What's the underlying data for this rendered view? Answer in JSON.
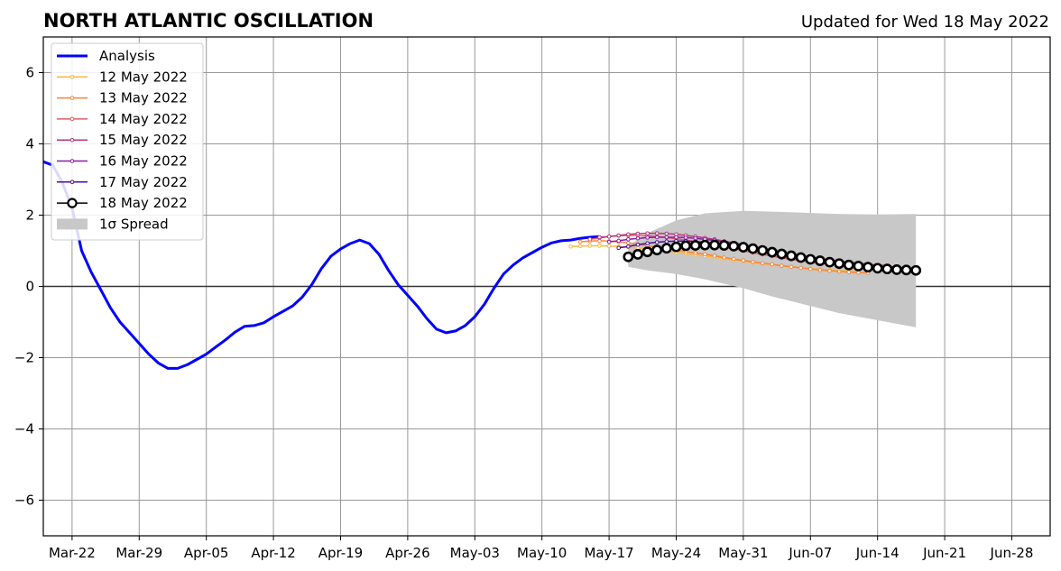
{
  "chart_data": {
    "type": "line",
    "title": "NORTH ATLANTIC OSCILLATION",
    "subtitle": "Updated for Wed 18 May 2022",
    "xlim": [
      "2022-03-19",
      "2022-07-02"
    ],
    "ylim": [
      -7,
      7
    ],
    "grid": true,
    "legend_position": "top-left",
    "x_ticks": [
      {
        "date": "2022-03-22",
        "label": "Mar-22"
      },
      {
        "date": "2022-03-29",
        "label": "Mar-29"
      },
      {
        "date": "2022-04-05",
        "label": "Apr-05"
      },
      {
        "date": "2022-04-12",
        "label": "Apr-12"
      },
      {
        "date": "2022-04-19",
        "label": "Apr-19"
      },
      {
        "date": "2022-04-26",
        "label": "Apr-26"
      },
      {
        "date": "2022-05-03",
        "label": "May-03"
      },
      {
        "date": "2022-05-10",
        "label": "May-10"
      },
      {
        "date": "2022-05-17",
        "label": "May-17"
      },
      {
        "date": "2022-05-24",
        "label": "May-24"
      },
      {
        "date": "2022-05-31",
        "label": "May-31"
      },
      {
        "date": "2022-06-07",
        "label": "Jun-07"
      },
      {
        "date": "2022-06-14",
        "label": "Jun-14"
      },
      {
        "date": "2022-06-21",
        "label": "Jun-21"
      },
      {
        "date": "2022-06-28",
        "label": "Jun-28"
      }
    ],
    "y_ticks": [
      {
        "value": 6,
        "label": "6"
      },
      {
        "value": 4,
        "label": "4"
      },
      {
        "value": 2,
        "label": "2"
      },
      {
        "value": 0,
        "label": "0"
      },
      {
        "value": -2,
        "label": "−2"
      },
      {
        "value": -4,
        "label": "−4"
      },
      {
        "value": -6,
        "label": "−6"
      }
    ],
    "series": [
      {
        "name": "Analysis",
        "color": "#0000ff",
        "style": "analysis",
        "x": [
          "2022-03-19",
          "2022-03-20",
          "2022-03-21",
          "2022-03-22",
          "2022-03-23",
          "2022-03-24",
          "2022-03-25",
          "2022-03-26",
          "2022-03-27",
          "2022-03-28",
          "2022-03-29",
          "2022-03-30",
          "2022-03-31",
          "2022-04-01",
          "2022-04-02",
          "2022-04-03",
          "2022-04-04",
          "2022-04-05",
          "2022-04-06",
          "2022-04-07",
          "2022-04-08",
          "2022-04-09",
          "2022-04-10",
          "2022-04-11",
          "2022-04-12",
          "2022-04-13",
          "2022-04-14",
          "2022-04-15",
          "2022-04-16",
          "2022-04-17",
          "2022-04-18",
          "2022-04-19",
          "2022-04-20",
          "2022-04-21",
          "2022-04-22",
          "2022-04-23",
          "2022-04-24",
          "2022-04-25",
          "2022-04-26",
          "2022-04-27",
          "2022-04-28",
          "2022-04-29",
          "2022-04-30",
          "2022-05-01",
          "2022-05-02",
          "2022-05-03",
          "2022-05-04",
          "2022-05-05",
          "2022-05-06",
          "2022-05-07",
          "2022-05-08",
          "2022-05-09",
          "2022-05-10",
          "2022-05-11",
          "2022-05-12",
          "2022-05-13",
          "2022-05-14",
          "2022-05-15",
          "2022-05-16"
        ],
        "y": [
          3.5,
          3.4,
          2.9,
          2.2,
          1.0,
          0.4,
          -0.1,
          -0.6,
          -1.0,
          -1.3,
          -1.6,
          -1.9,
          -2.15,
          -2.3,
          -2.3,
          -2.2,
          -2.05,
          -1.9,
          -1.7,
          -1.5,
          -1.28,
          -1.12,
          -1.1,
          -1.02,
          -0.85,
          -0.7,
          -0.55,
          -0.3,
          0.05,
          0.5,
          0.85,
          1.05,
          1.2,
          1.3,
          1.2,
          0.9,
          0.45,
          0.05,
          -0.25,
          -0.55,
          -0.9,
          -1.2,
          -1.3,
          -1.25,
          -1.1,
          -0.85,
          -0.5,
          -0.05,
          0.35,
          0.6,
          0.8,
          0.95,
          1.1,
          1.22,
          1.28,
          1.3,
          1.35,
          1.38,
          1.4
        ]
      },
      {
        "name": "12 May 2022",
        "color": "#fcb73f",
        "style": "marker",
        "x": [
          "2022-05-13",
          "2022-05-14",
          "2022-05-15",
          "2022-05-16",
          "2022-05-17",
          "2022-05-18",
          "2022-05-19",
          "2022-05-20",
          "2022-05-21",
          "2022-05-22",
          "2022-05-23",
          "2022-05-24",
          "2022-05-25",
          "2022-05-26",
          "2022-05-27",
          "2022-05-28",
          "2022-05-29",
          "2022-05-30",
          "2022-05-31",
          "2022-06-01",
          "2022-06-02",
          "2022-06-03",
          "2022-06-04",
          "2022-06-05",
          "2022-06-06",
          "2022-06-07",
          "2022-06-08",
          "2022-06-09",
          "2022-06-10",
          "2022-06-11",
          "2022-06-12"
        ],
        "y": [
          1.12,
          1.13,
          1.14,
          1.14,
          1.13,
          1.12,
          1.1,
          1.08,
          1.05,
          1.02,
          0.99,
          0.96,
          0.93,
          0.89,
          0.85,
          0.82,
          0.78,
          0.74,
          0.71,
          0.67,
          0.64,
          0.61,
          0.58,
          0.55,
          0.53,
          0.5,
          0.48,
          0.46,
          0.44,
          0.43,
          0.42
        ]
      },
      {
        "name": "13 May 2022",
        "color": "#f7853b",
        "style": "marker",
        "x": [
          "2022-05-14",
          "2022-05-15",
          "2022-05-16",
          "2022-05-17",
          "2022-05-18",
          "2022-05-19",
          "2022-05-20",
          "2022-05-21",
          "2022-05-22",
          "2022-05-23",
          "2022-05-24",
          "2022-05-25",
          "2022-05-26",
          "2022-05-27",
          "2022-05-28",
          "2022-05-29",
          "2022-05-30",
          "2022-05-31",
          "2022-06-01",
          "2022-06-02",
          "2022-06-03",
          "2022-06-04",
          "2022-06-05",
          "2022-06-06",
          "2022-06-07",
          "2022-06-08",
          "2022-06-09",
          "2022-06-10",
          "2022-06-11",
          "2022-06-12",
          "2022-06-13"
        ],
        "y": [
          1.25,
          1.27,
          1.28,
          1.27,
          1.25,
          1.22,
          1.18,
          1.14,
          1.1,
          1.06,
          1.02,
          0.98,
          0.94,
          0.9,
          0.86,
          0.81,
          0.77,
          0.73,
          0.69,
          0.65,
          0.62,
          0.58,
          0.55,
          0.52,
          0.49,
          0.46,
          0.44,
          0.42,
          0.4,
          0.39,
          0.38
        ]
      },
      {
        "name": "14 May 2022",
        "color": "#e15c63",
        "style": "marker",
        "x": [
          "2022-05-15",
          "2022-05-16",
          "2022-05-17",
          "2022-05-18",
          "2022-05-19",
          "2022-05-20",
          "2022-05-21",
          "2022-05-22",
          "2022-05-23",
          "2022-05-24",
          "2022-05-25",
          "2022-05-26",
          "2022-05-27",
          "2022-05-28",
          "2022-05-29",
          "2022-05-30",
          "2022-05-31",
          "2022-06-01",
          "2022-06-02",
          "2022-06-03",
          "2022-06-04",
          "2022-06-05",
          "2022-06-06",
          "2022-06-07",
          "2022-06-08",
          "2022-06-09",
          "2022-06-10",
          "2022-06-11",
          "2022-06-12",
          "2022-06-13",
          "2022-06-14"
        ],
        "y": [
          1.32,
          1.36,
          1.4,
          1.42,
          1.43,
          1.43,
          1.42,
          1.4,
          1.37,
          1.34,
          1.3,
          1.26,
          1.21,
          1.16,
          1.11,
          1.06,
          1.0,
          0.95,
          0.9,
          0.85,
          0.8,
          0.76,
          0.72,
          0.68,
          0.65,
          0.62,
          0.6,
          0.58,
          0.56,
          0.55,
          0.54
        ]
      },
      {
        "name": "15 May 2022",
        "color": "#b5367a",
        "style": "marker",
        "x": [
          "2022-05-16",
          "2022-05-17",
          "2022-05-18",
          "2022-05-19",
          "2022-05-20",
          "2022-05-21",
          "2022-05-22",
          "2022-05-23",
          "2022-05-24",
          "2022-05-25",
          "2022-05-26",
          "2022-05-27",
          "2022-05-28",
          "2022-05-29",
          "2022-05-30",
          "2022-05-31",
          "2022-06-01",
          "2022-06-02",
          "2022-06-03",
          "2022-06-04",
          "2022-06-05",
          "2022-06-06",
          "2022-06-07",
          "2022-06-08",
          "2022-06-09",
          "2022-06-10",
          "2022-06-11",
          "2022-06-12",
          "2022-06-13",
          "2022-06-14",
          "2022-06-15"
        ],
        "y": [
          1.38,
          1.4,
          1.43,
          1.46,
          1.48,
          1.49,
          1.49,
          1.48,
          1.46,
          1.43,
          1.4,
          1.36,
          1.32,
          1.27,
          1.22,
          1.17,
          1.12,
          1.06,
          1.01,
          0.96,
          0.91,
          0.86,
          0.82,
          0.78,
          0.74,
          0.71,
          0.68,
          0.65,
          0.62,
          0.6,
          0.58
        ]
      },
      {
        "name": "16 May 2022",
        "color": "#8a1ca8",
        "style": "marker",
        "x": [
          "2022-05-17",
          "2022-05-18",
          "2022-05-19",
          "2022-05-20",
          "2022-05-21",
          "2022-05-22",
          "2022-05-23",
          "2022-05-24",
          "2022-05-25",
          "2022-05-26",
          "2022-05-27",
          "2022-05-28",
          "2022-05-29",
          "2022-05-30",
          "2022-05-31",
          "2022-06-01",
          "2022-06-02",
          "2022-06-03",
          "2022-06-04",
          "2022-06-05",
          "2022-06-06",
          "2022-06-07",
          "2022-06-08",
          "2022-06-09",
          "2022-06-10",
          "2022-06-11",
          "2022-06-12",
          "2022-06-13",
          "2022-06-14",
          "2022-06-15",
          "2022-06-16"
        ],
        "y": [
          1.25,
          1.28,
          1.32,
          1.35,
          1.37,
          1.38,
          1.38,
          1.38,
          1.37,
          1.35,
          1.32,
          1.29,
          1.25,
          1.21,
          1.17,
          1.12,
          1.07,
          1.02,
          0.97,
          0.92,
          0.87,
          0.83,
          0.78,
          0.74,
          0.7,
          0.67,
          0.64,
          0.61,
          0.58,
          0.56,
          0.54
        ]
      },
      {
        "name": "17 May 2022",
        "color": "#4a0c9e",
        "style": "marker",
        "x": [
          "2022-05-18",
          "2022-05-19",
          "2022-05-20",
          "2022-05-21",
          "2022-05-22",
          "2022-05-23",
          "2022-05-24",
          "2022-05-25",
          "2022-05-26",
          "2022-05-27",
          "2022-05-28",
          "2022-05-29",
          "2022-05-30",
          "2022-05-31",
          "2022-06-01",
          "2022-06-02",
          "2022-06-03",
          "2022-06-04",
          "2022-06-05",
          "2022-06-06",
          "2022-06-07",
          "2022-06-08",
          "2022-06-09",
          "2022-06-10",
          "2022-06-11",
          "2022-06-12",
          "2022-06-13",
          "2022-06-14",
          "2022-06-15",
          "2022-06-16",
          "2022-06-17"
        ],
        "y": [
          1.08,
          1.12,
          1.17,
          1.21,
          1.24,
          1.26,
          1.27,
          1.27,
          1.26,
          1.24,
          1.21,
          1.18,
          1.14,
          1.1,
          1.06,
          1.01,
          0.96,
          0.91,
          0.86,
          0.81,
          0.77,
          0.72,
          0.68,
          0.65,
          0.61,
          0.58,
          0.55,
          0.53,
          0.51,
          0.49,
          0.47
        ]
      },
      {
        "name": "18 May 2022",
        "color": "#000000",
        "style": "open-circle",
        "x": [
          "2022-05-19",
          "2022-05-20",
          "2022-05-21",
          "2022-05-22",
          "2022-05-23",
          "2022-05-24",
          "2022-05-25",
          "2022-05-26",
          "2022-05-27",
          "2022-05-28",
          "2022-05-29",
          "2022-05-30",
          "2022-05-31",
          "2022-06-01",
          "2022-06-02",
          "2022-06-03",
          "2022-06-04",
          "2022-06-05",
          "2022-06-06",
          "2022-06-07",
          "2022-06-08",
          "2022-06-09",
          "2022-06-10",
          "2022-06-11",
          "2022-06-12",
          "2022-06-13",
          "2022-06-14",
          "2022-06-15",
          "2022-06-16",
          "2022-06-17",
          "2022-06-18"
        ],
        "y": [
          0.83,
          0.9,
          0.97,
          1.02,
          1.07,
          1.11,
          1.14,
          1.15,
          1.16,
          1.16,
          1.15,
          1.13,
          1.1,
          1.06,
          1.01,
          0.96,
          0.91,
          0.86,
          0.81,
          0.76,
          0.72,
          0.68,
          0.64,
          0.6,
          0.57,
          0.54,
          0.51,
          0.49,
          0.47,
          0.46,
          0.45
        ]
      },
      {
        "name": "1σ Spread",
        "color": "#c8c8c8",
        "style": "band",
        "x": [
          "2022-05-19",
          "2022-05-21",
          "2022-05-24",
          "2022-05-27",
          "2022-05-31",
          "2022-06-03",
          "2022-06-07",
          "2022-06-10",
          "2022-06-14",
          "2022-06-18"
        ],
        "upper": [
          1.15,
          1.5,
          1.85,
          2.05,
          2.12,
          2.1,
          2.06,
          2.03,
          2.02,
          2.03
        ],
        "lower": [
          0.55,
          0.45,
          0.35,
          0.2,
          -0.05,
          -0.28,
          -0.55,
          -0.75,
          -0.95,
          -1.15
        ]
      }
    ]
  }
}
